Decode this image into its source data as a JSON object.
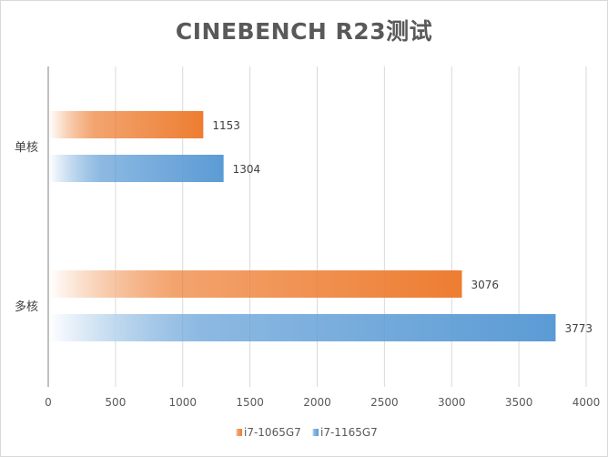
{
  "chart_data": {
    "type": "bar",
    "orientation": "horizontal",
    "title": "CINEBENCH R23测试",
    "categories": [
      "单核",
      "多核"
    ],
    "series": [
      {
        "name": "i7-1065G7",
        "values": [
          1153,
          3076
        ],
        "color": "#ED7D31"
      },
      {
        "name": "i7-1165G7",
        "values": [
          1304,
          3773
        ],
        "color": "#5B9BD5"
      }
    ],
    "xlim": [
      0,
      4000
    ],
    "xticks": [
      0,
      500,
      1000,
      1500,
      2000,
      2500,
      3000,
      3500,
      4000
    ],
    "grid": true,
    "legend": "bottom"
  }
}
